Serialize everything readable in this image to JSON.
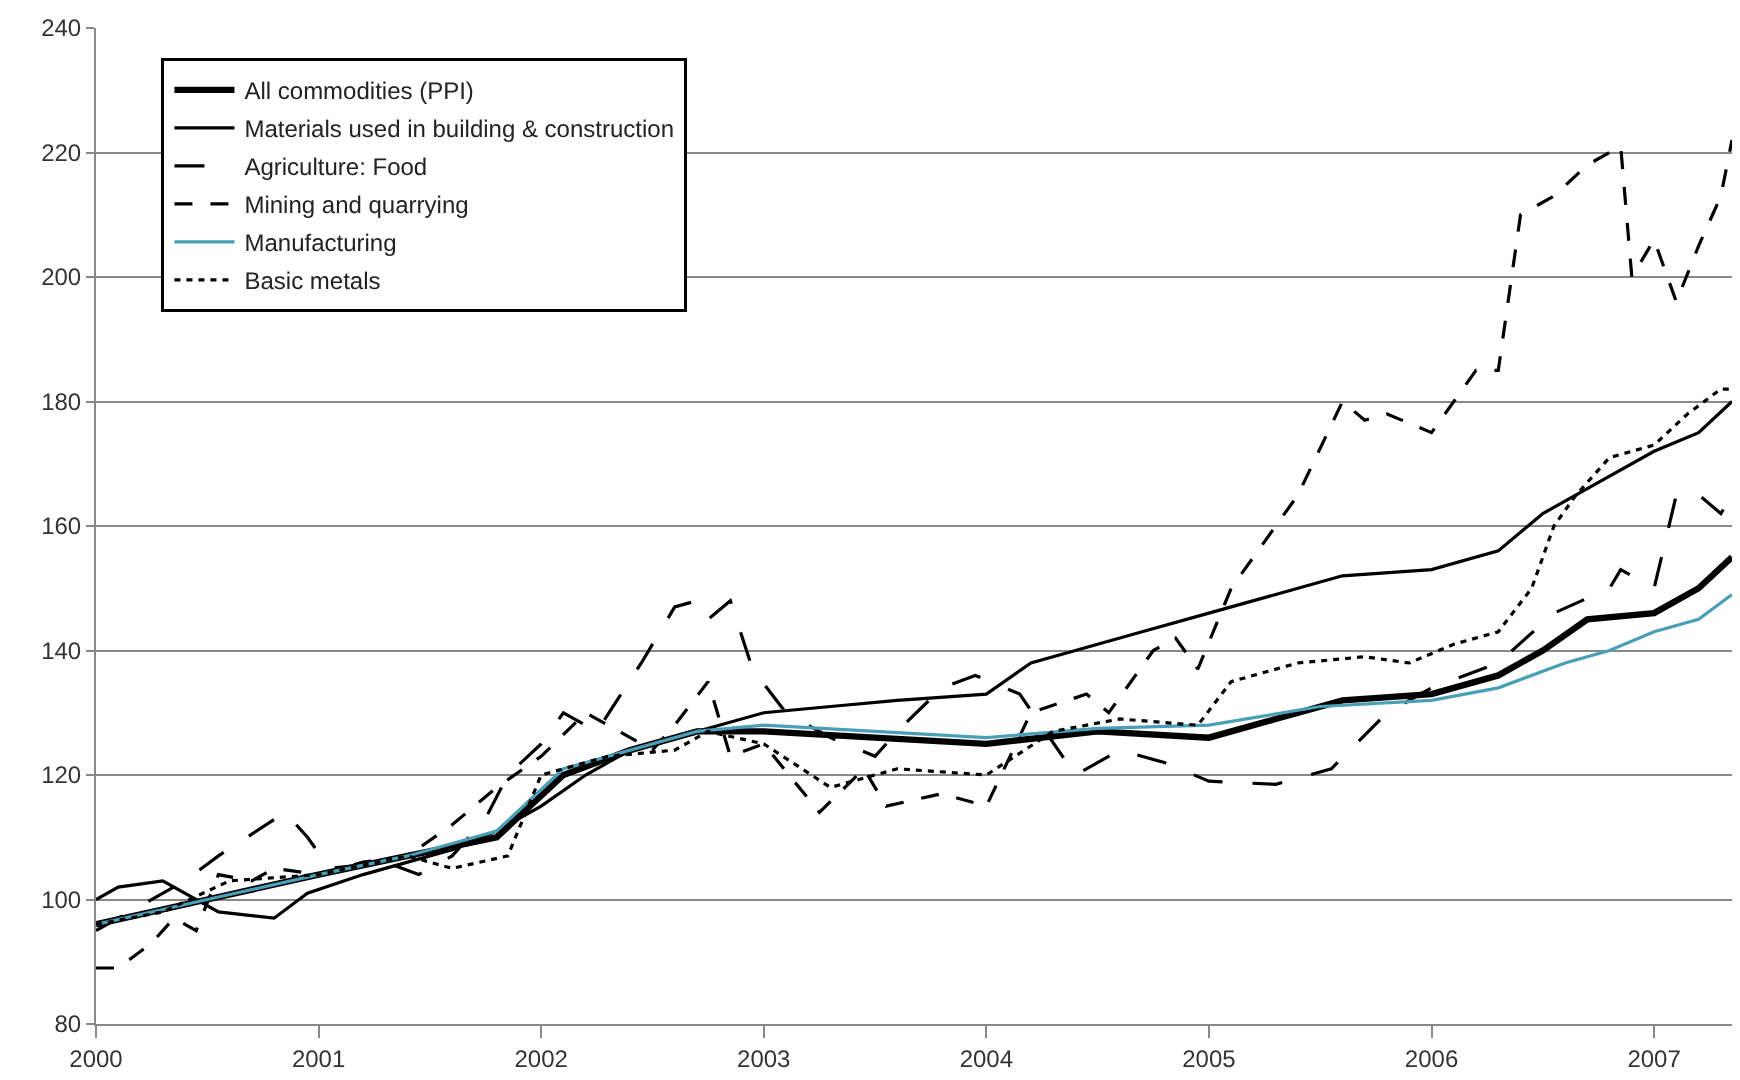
{
  "chart_data": {
    "type": "line",
    "xlim": [
      2000,
      2007.35
    ],
    "xticks": [
      2000,
      2001,
      2002,
      2003,
      2004,
      2005,
      2006,
      2007
    ],
    "ylim": [
      80,
      240
    ],
    "yticks": [
      80,
      100,
      120,
      140,
      160,
      180,
      200,
      220,
      240
    ],
    "grid": "y",
    "legend": "top left",
    "marker": "none",
    "series": [
      {
        "name": "All commodities (PPI)",
        "color": "#000000",
        "line_style": "solid",
        "x": [
          2000,
          2000.5,
          2001,
          2001.4,
          2001.8,
          2002.1,
          2002.4,
          2002.7,
          2003,
          2003.5,
          2004,
          2004.5,
          2005,
          2005.3,
          2005.6,
          2006,
          2006.3,
          2006.5,
          2006.7,
          2007,
          2007.2,
          2007.35
        ],
        "values": [
          96,
          100,
          104,
          107,
          110,
          120,
          124,
          127,
          127,
          126,
          125,
          127,
          126,
          129,
          132,
          133,
          136,
          140,
          145,
          146,
          150,
          155
        ]
      },
      {
        "name": "Materials used in building & construction",
        "color": "#000000",
        "line_style": "solid",
        "x": [
          2000,
          2000.1,
          2000.3,
          2000.55,
          2000.8,
          2000.95,
          2001.2,
          2001.4,
          2001.6,
          2001.8,
          2002,
          2002.2,
          2002.4,
          2002.6,
          2002.8,
          2003,
          2003.3,
          2003.6,
          2004,
          2004.2,
          2004.4,
          2004.7,
          2005,
          2005.3,
          2005.6,
          2006,
          2006.3,
          2006.5,
          2006.75,
          2007,
          2007.2,
          2007.35
        ],
        "values": [
          100,
          102,
          103,
          98,
          97,
          101,
          104,
          106,
          108,
          111,
          115,
          120,
          124,
          126,
          128,
          130,
          131,
          132,
          133,
          138,
          140,
          143,
          146,
          149,
          152,
          153,
          156,
          162,
          167,
          172,
          175,
          180
        ]
      },
      {
        "name": "Agriculture: Food",
        "color": "#000000",
        "line_style": "dashed",
        "x": [
          2000,
          2000.2,
          2000.4,
          2000.55,
          2000.85,
          2000.95,
          2001.05,
          2001.3,
          2001.45,
          2001.6,
          2001.75,
          2001.85,
          2002,
          2002.1,
          2002.25,
          2002.45,
          2002.6,
          2002.7,
          2002.75,
          2002.85,
          2002.95,
          2003.1,
          2003.3,
          2003.5,
          2003.6,
          2003.8,
          2003.95,
          2004.15,
          2004.4,
          2004.6,
          2004.8,
          2005,
          2005.3,
          2005.55,
          2005.8,
          2006,
          2006.3,
          2006.55,
          2006.8,
          2006.85,
          2007,
          2007.1,
          2007.2,
          2007.3,
          2007.35
        ],
        "values": [
          95,
          99,
          103,
          107,
          114,
          110,
          105,
          106,
          104,
          107,
          113,
          120,
          125,
          130,
          127,
          138,
          147,
          148,
          145,
          148,
          137,
          130,
          126,
          123,
          127,
          134,
          136,
          133,
          120,
          124,
          122,
          119,
          118.5,
          121,
          130,
          134,
          138,
          146,
          150,
          153,
          150,
          165,
          165,
          162,
          165
        ]
      },
      {
        "name": "Mining and quarrying",
        "color": "#000000",
        "line_style": "dashed",
        "x": [
          2000,
          2000.1,
          2000.25,
          2000.35,
          2000.45,
          2000.55,
          2000.7,
          2000.8,
          2001,
          2001.2,
          2001.4,
          2001.6,
          2001.8,
          2002,
          2002.2,
          2002.35,
          2002.5,
          2002.6,
          2002.75,
          2002.85,
          2003,
          2003.25,
          2003.45,
          2003.55,
          2003.8,
          2004,
          2004.2,
          2004.45,
          2004.55,
          2004.75,
          2004.85,
          2004.95,
          2005.1,
          2005.4,
          2005.6,
          2005.7,
          2005.8,
          2006,
          2006.2,
          2006.3,
          2006.4,
          2006.55,
          2006.7,
          2006.85,
          2006.9,
          2007,
          2007.1,
          2007.2,
          2007.3,
          2007.35
        ],
        "values": [
          89,
          89,
          93,
          97,
          95,
          104,
          103,
          105,
          104,
          106,
          107,
          112,
          118,
          123,
          130,
          127,
          124,
          128,
          135,
          123,
          125,
          114,
          121,
          115,
          117,
          115,
          130,
          133,
          130,
          140,
          142,
          137,
          150,
          165,
          180,
          177,
          178,
          175,
          185,
          185,
          210,
          213,
          218,
          221,
          200,
          206,
          196,
          205,
          213,
          222
        ]
      },
      {
        "name": "Manufacturing",
        "color": "#4a9fb8",
        "line_style": "solid",
        "x": [
          2000,
          2000.5,
          2001,
          2001.4,
          2001.8,
          2002.1,
          2002.4,
          2002.7,
          2003,
          2003.5,
          2004,
          2004.5,
          2005,
          2005.5,
          2006,
          2006.3,
          2006.6,
          2006.8,
          2007,
          2007.2,
          2007.35
        ],
        "values": [
          96,
          100,
          104,
          107,
          111,
          121,
          124,
          127,
          128,
          127,
          126,
          127.5,
          128,
          131,
          132,
          134,
          138,
          140,
          143,
          145,
          149
        ]
      },
      {
        "name": "Basic metals",
        "color": "#000000",
        "line_style": "dotted",
        "x": [
          2000,
          2000.3,
          2000.6,
          2001,
          2001.4,
          2001.6,
          2001.85,
          2002,
          2002.3,
          2002.6,
          2002.75,
          2003,
          2003.3,
          2003.6,
          2004,
          2004.3,
          2004.6,
          2004.95,
          2005.1,
          2005.4,
          2005.7,
          2005.9,
          2006.1,
          2006.3,
          2006.45,
          2006.55,
          2006.65,
          2006.8,
          2007,
          2007.15,
          2007.3,
          2007.35
        ],
        "values": [
          96,
          98,
          103,
          104,
          107,
          105,
          107,
          120,
          123,
          124,
          127,
          125,
          118,
          121,
          120,
          127,
          129,
          128,
          135,
          138,
          139,
          138,
          141,
          143,
          150,
          160,
          165,
          171,
          173,
          178,
          182,
          182
        ]
      }
    ]
  }
}
